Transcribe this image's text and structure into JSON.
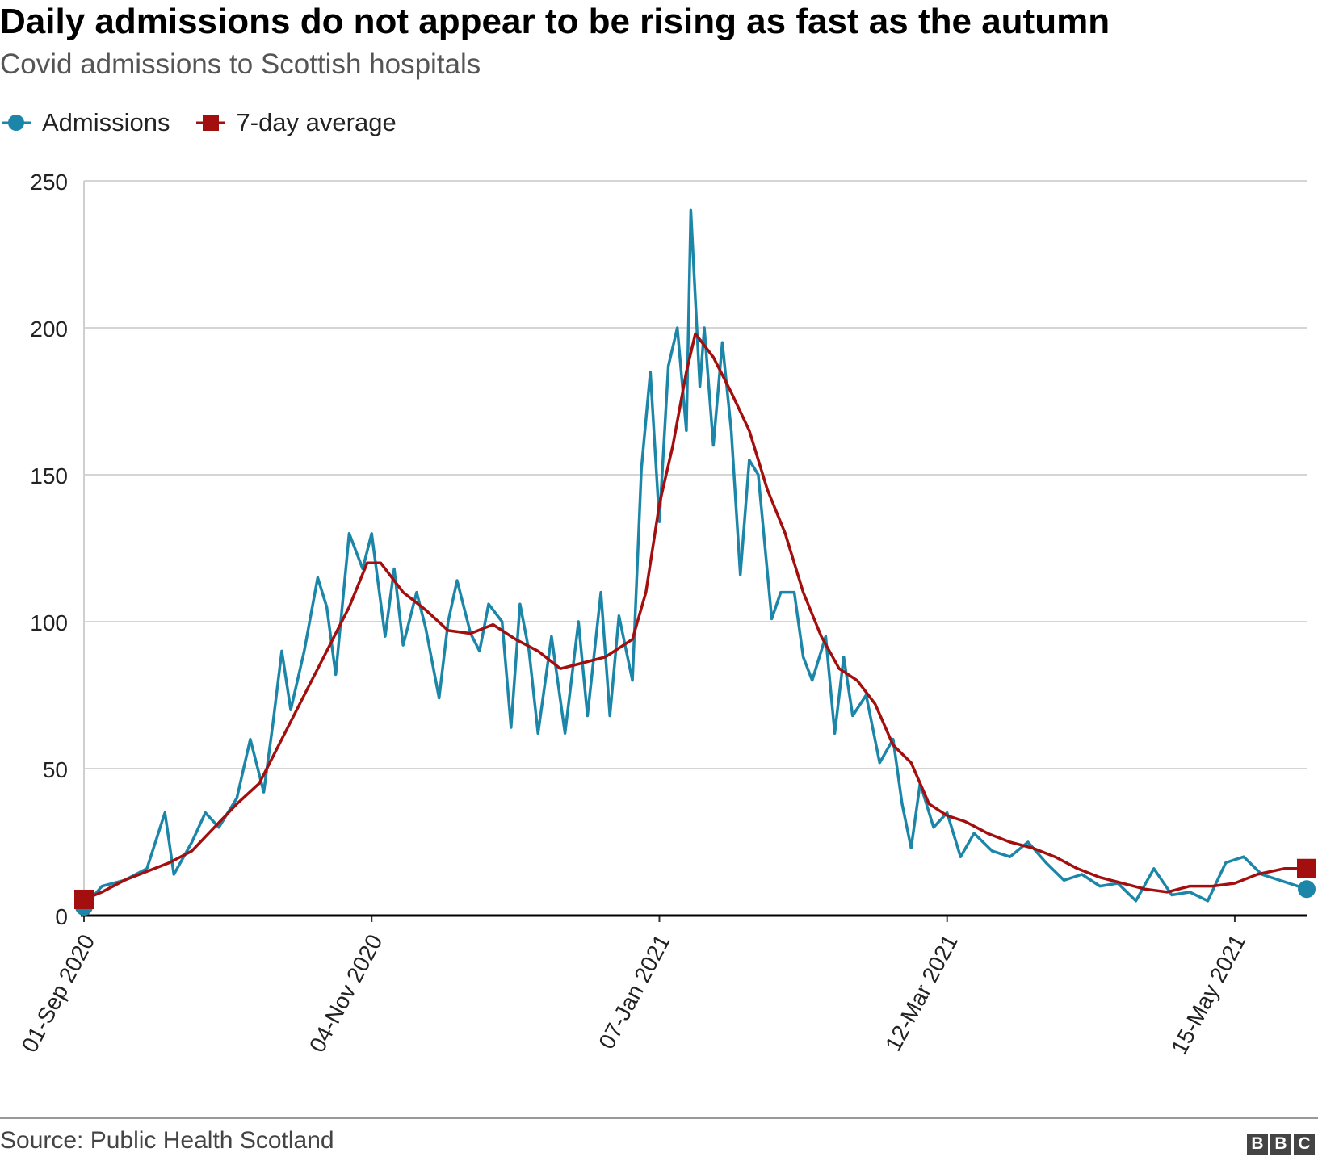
{
  "header": {
    "title": "Daily admissions do not appear to be rising as fast as the autumn",
    "subtitle": "Covid admissions to Scottish hospitals"
  },
  "legend": {
    "admissions_label": "Admissions",
    "average_label": "7-day average"
  },
  "footer": {
    "source": "Source: Public Health Scotland",
    "logo_letters": [
      "B",
      "B",
      "C"
    ]
  },
  "colors": {
    "admissions": "#1b86a8",
    "average": "#a30f0f",
    "grid": "#d5d5d5",
    "axis": "#000000"
  },
  "chart_data": {
    "type": "line",
    "title": "Daily admissions do not appear to be rising as fast as the autumn",
    "subtitle": "Covid admissions to Scottish hospitals",
    "x_start": "2020-09-01",
    "x_end": "2021-05-31",
    "x_ticks": [
      "01-Sep 2020",
      "04-Nov 2020",
      "07-Jan 2021",
      "12-Mar 2021",
      "15-May 2021"
    ],
    "y_ticks": [
      0,
      50,
      100,
      150,
      200,
      250
    ],
    "ylim": [
      0,
      250
    ],
    "grid": true,
    "legend_position": "top-left",
    "source": "Source: Public Health Scotland",
    "series": [
      {
        "name": "Admissions",
        "points": [
          [
            "2020-09-01",
            3
          ],
          [
            "2020-09-05",
            10
          ],
          [
            "2020-09-10",
            12
          ],
          [
            "2020-09-15",
            16
          ],
          [
            "2020-09-19",
            35
          ],
          [
            "2020-09-21",
            14
          ],
          [
            "2020-09-25",
            25
          ],
          [
            "2020-09-28",
            35
          ],
          [
            "2020-10-01",
            30
          ],
          [
            "2020-10-05",
            40
          ],
          [
            "2020-10-08",
            60
          ],
          [
            "2020-10-11",
            42
          ],
          [
            "2020-10-13",
            65
          ],
          [
            "2020-10-15",
            90
          ],
          [
            "2020-10-17",
            70
          ],
          [
            "2020-10-20",
            90
          ],
          [
            "2020-10-23",
            115
          ],
          [
            "2020-10-25",
            105
          ],
          [
            "2020-10-27",
            82
          ],
          [
            "2020-10-30",
            130
          ],
          [
            "2020-11-02",
            118
          ],
          [
            "2020-11-04",
            130
          ],
          [
            "2020-11-07",
            95
          ],
          [
            "2020-11-09",
            118
          ],
          [
            "2020-11-11",
            92
          ],
          [
            "2020-11-14",
            110
          ],
          [
            "2020-11-16",
            98
          ],
          [
            "2020-11-19",
            74
          ],
          [
            "2020-11-21",
            100
          ],
          [
            "2020-11-23",
            114
          ],
          [
            "2020-11-26",
            96
          ],
          [
            "2020-11-28",
            90
          ],
          [
            "2020-11-30",
            106
          ],
          [
            "2020-12-03",
            100
          ],
          [
            "2020-12-05",
            64
          ],
          [
            "2020-12-07",
            106
          ],
          [
            "2020-12-09",
            90
          ],
          [
            "2020-12-11",
            62
          ],
          [
            "2020-12-14",
            95
          ],
          [
            "2020-12-17",
            62
          ],
          [
            "2020-12-20",
            100
          ],
          [
            "2020-12-22",
            68
          ],
          [
            "2020-12-25",
            110
          ],
          [
            "2020-12-27",
            68
          ],
          [
            "2020-12-29",
            102
          ],
          [
            "2021-01-01",
            80
          ],
          [
            "2021-01-03",
            152
          ],
          [
            "2021-01-05",
            185
          ],
          [
            "2021-01-07",
            134
          ],
          [
            "2021-01-09",
            187
          ],
          [
            "2021-01-11",
            200
          ],
          [
            "2021-01-13",
            165
          ],
          [
            "2021-01-14",
            240
          ],
          [
            "2021-01-16",
            180
          ],
          [
            "2021-01-17",
            200
          ],
          [
            "2021-01-19",
            160
          ],
          [
            "2021-01-21",
            195
          ],
          [
            "2021-01-23",
            165
          ],
          [
            "2021-01-25",
            116
          ],
          [
            "2021-01-27",
            155
          ],
          [
            "2021-01-29",
            150
          ],
          [
            "2021-02-01",
            101
          ],
          [
            "2021-02-03",
            110
          ],
          [
            "2021-02-06",
            110
          ],
          [
            "2021-02-08",
            88
          ],
          [
            "2021-02-10",
            80
          ],
          [
            "2021-02-13",
            95
          ],
          [
            "2021-02-15",
            62
          ],
          [
            "2021-02-17",
            88
          ],
          [
            "2021-02-19",
            68
          ],
          [
            "2021-02-22",
            75
          ],
          [
            "2021-02-25",
            52
          ],
          [
            "2021-02-28",
            60
          ],
          [
            "2021-03-02",
            38
          ],
          [
            "2021-03-04",
            23
          ],
          [
            "2021-03-06",
            45
          ],
          [
            "2021-03-09",
            30
          ],
          [
            "2021-03-12",
            35
          ],
          [
            "2021-03-15",
            20
          ],
          [
            "2021-03-18",
            28
          ],
          [
            "2021-03-22",
            22
          ],
          [
            "2021-03-26",
            20
          ],
          [
            "2021-03-30",
            25
          ],
          [
            "2021-04-03",
            18
          ],
          [
            "2021-04-07",
            12
          ],
          [
            "2021-04-11",
            14
          ],
          [
            "2021-04-15",
            10
          ],
          [
            "2021-04-19",
            11
          ],
          [
            "2021-04-23",
            5
          ],
          [
            "2021-04-27",
            16
          ],
          [
            "2021-05-01",
            7
          ],
          [
            "2021-05-05",
            8
          ],
          [
            "2021-05-09",
            5
          ],
          [
            "2021-05-13",
            18
          ],
          [
            "2021-05-17",
            20
          ],
          [
            "2021-05-21",
            14
          ],
          [
            "2021-05-31",
            9
          ]
        ]
      },
      {
        "name": "7-day average",
        "points": [
          [
            "2020-09-01",
            5.5
          ],
          [
            "2020-09-05",
            8
          ],
          [
            "2020-09-10",
            12
          ],
          [
            "2020-09-15",
            15
          ],
          [
            "2020-09-20",
            18
          ],
          [
            "2020-09-25",
            22
          ],
          [
            "2020-09-30",
            30
          ],
          [
            "2020-10-05",
            38
          ],
          [
            "2020-10-10",
            45
          ],
          [
            "2020-10-15",
            60
          ],
          [
            "2020-10-20",
            75
          ],
          [
            "2020-10-25",
            90
          ],
          [
            "2020-10-30",
            105
          ],
          [
            "2020-11-03",
            120
          ],
          [
            "2020-11-06",
            120
          ],
          [
            "2020-11-11",
            110
          ],
          [
            "2020-11-16",
            104
          ],
          [
            "2020-11-21",
            97
          ],
          [
            "2020-11-26",
            96
          ],
          [
            "2020-12-01",
            99
          ],
          [
            "2020-12-06",
            94
          ],
          [
            "2020-12-11",
            90
          ],
          [
            "2020-12-16",
            84
          ],
          [
            "2020-12-21",
            86
          ],
          [
            "2020-12-26",
            88
          ],
          [
            "2021-01-01",
            94
          ],
          [
            "2021-01-04",
            110
          ],
          [
            "2021-01-07",
            140
          ],
          [
            "2021-01-10",
            160
          ],
          [
            "2021-01-13",
            185
          ],
          [
            "2021-01-15",
            198
          ],
          [
            "2021-01-19",
            190
          ],
          [
            "2021-01-23",
            178
          ],
          [
            "2021-01-27",
            165
          ],
          [
            "2021-01-31",
            145
          ],
          [
            "2021-02-04",
            130
          ],
          [
            "2021-02-08",
            110
          ],
          [
            "2021-02-12",
            95
          ],
          [
            "2021-02-16",
            84
          ],
          [
            "2021-02-20",
            80
          ],
          [
            "2021-02-24",
            72
          ],
          [
            "2021-02-28",
            58
          ],
          [
            "2021-03-04",
            52
          ],
          [
            "2021-03-08",
            38
          ],
          [
            "2021-03-12",
            34
          ],
          [
            "2021-03-16",
            32
          ],
          [
            "2021-03-21",
            28
          ],
          [
            "2021-03-26",
            25
          ],
          [
            "2021-03-31",
            23
          ],
          [
            "2021-04-05",
            20
          ],
          [
            "2021-04-10",
            16
          ],
          [
            "2021-04-15",
            13
          ],
          [
            "2021-04-20",
            11
          ],
          [
            "2021-04-25",
            9
          ],
          [
            "2021-04-30",
            8
          ],
          [
            "2021-05-05",
            10
          ],
          [
            "2021-05-10",
            10
          ],
          [
            "2021-05-15",
            11
          ],
          [
            "2021-05-20",
            14
          ],
          [
            "2021-05-26",
            16
          ],
          [
            "2021-05-31",
            16
          ]
        ]
      }
    ]
  }
}
